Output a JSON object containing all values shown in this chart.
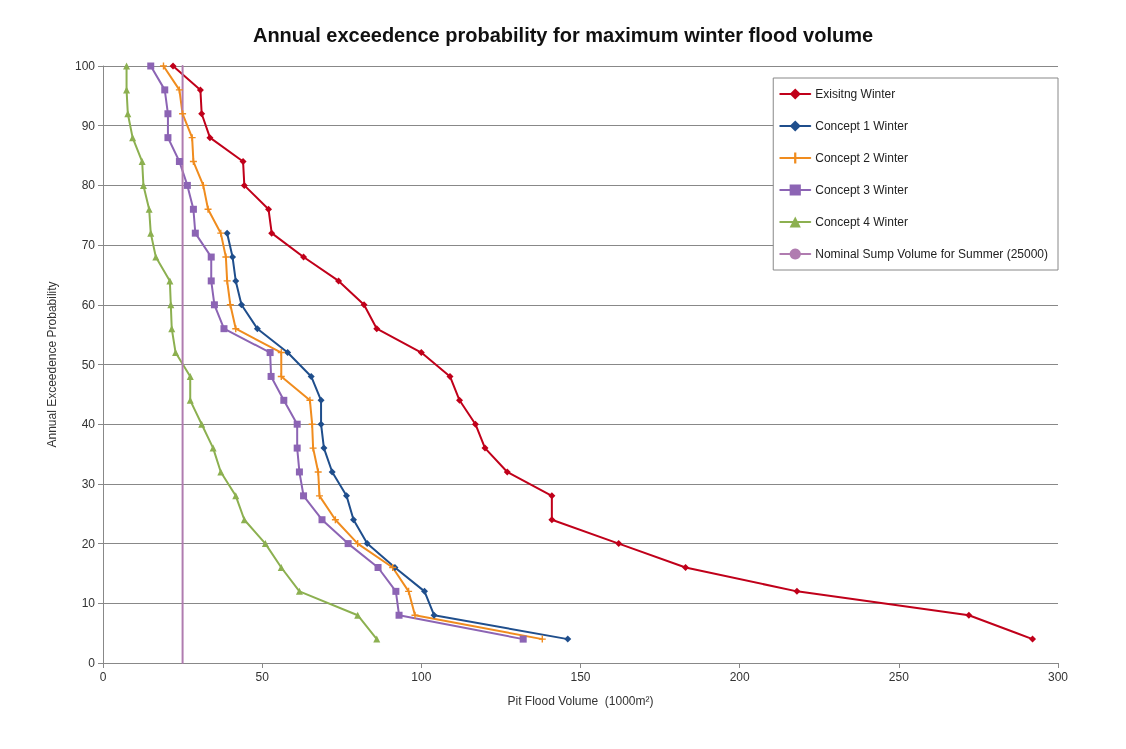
{
  "chart_data": {
    "type": "line",
    "title": "Annual exceedence probability for maximum winter flood volume",
    "xlabel": "Pit Flood Volume  (1000m²)",
    "ylabel": "Annual Exceedence Probability",
    "xlim": [
      0,
      300
    ],
    "xticks": [
      0,
      50,
      100,
      150,
      200,
      250,
      300
    ],
    "ylim": [
      0,
      100
    ],
    "yticks": [
      0,
      10,
      20,
      30,
      40,
      50,
      60,
      70,
      80,
      90,
      100
    ],
    "grid": "y",
    "legend": "top right",
    "series": [
      {
        "name": "Exisitng Winter",
        "color": "#c0001a",
        "marker": "diamond",
        "x": [
          22,
          30.6,
          31,
          33.6,
          44,
          44.4,
          52,
          53,
          63,
          74,
          82,
          86,
          100,
          109,
          112,
          117,
          120,
          127,
          141,
          141,
          162,
          183,
          218,
          272,
          292
        ],
        "values": [
          100,
          96,
          92,
          88,
          84,
          80,
          76,
          72,
          68,
          64,
          60,
          56,
          52,
          48,
          44,
          40,
          36,
          32,
          28,
          24,
          20,
          16,
          12,
          8,
          4
        ]
      },
      {
        "name": "Concept 1 Winter",
        "color": "#1f4e8c",
        "marker": "diamond",
        "x": [
          null,
          null,
          null,
          null,
          null,
          null,
          null,
          39,
          40.7,
          41.7,
          43.5,
          48.5,
          58,
          65.4,
          68.5,
          68.5,
          69.4,
          72,
          76.5,
          78.7,
          83,
          91.7,
          101,
          104,
          146
        ],
        "values": [
          null,
          null,
          null,
          null,
          null,
          null,
          null,
          72,
          68,
          64,
          60,
          56,
          52,
          48,
          44,
          40,
          36,
          32,
          28,
          24,
          20,
          16,
          12,
          8,
          4
        ]
      },
      {
        "name": "Concept 2 Winter",
        "color": "#f08c1e",
        "marker": "cross",
        "x": [
          19,
          24,
          25,
          28,
          28.4,
          31.5,
          33,
          37,
          38.6,
          39,
          40,
          41.7,
          56,
          56,
          65,
          65.7,
          66,
          67.6,
          68,
          73,
          80,
          91,
          96,
          98,
          138
        ],
        "values": [
          100,
          96,
          92,
          88,
          84,
          80,
          76,
          72,
          68,
          64,
          60,
          56,
          52,
          48,
          44,
          40,
          36,
          32,
          28,
          24,
          20,
          16,
          12,
          8,
          4
        ]
      },
      {
        "name": "Concept 3 Winter",
        "color": "#8c64b4",
        "marker": "square",
        "x": [
          15,
          19.4,
          20.4,
          20.4,
          24,
          26.5,
          28.4,
          29,
          34,
          34,
          35,
          38,
          52.5,
          52.8,
          56.8,
          61,
          61,
          61.7,
          63,
          68.8,
          77,
          86.4,
          92,
          93,
          132
        ],
        "values": [
          100,
          96,
          92,
          88,
          84,
          80,
          76,
          72,
          68,
          64,
          60,
          56,
          52,
          48,
          44,
          40,
          36,
          32,
          28,
          24,
          20,
          16,
          12,
          8,
          4
        ]
      },
      {
        "name": "Concept 4 Winter",
        "color": "#8cb050",
        "marker": "triangle",
        "x": [
          7.4,
          7.4,
          7.8,
          9.3,
          12.3,
          12.7,
          14.5,
          15,
          16.6,
          21,
          21.3,
          21.6,
          22.8,
          27.4,
          27.4,
          31,
          34.6,
          37,
          41.7,
          44.4,
          51,
          56,
          61.7,
          80,
          86
        ],
        "values": [
          100,
          96,
          92,
          88,
          84,
          80,
          76,
          72,
          68,
          64,
          60,
          56,
          52,
          48,
          44,
          40,
          36,
          32,
          28,
          24,
          20,
          16,
          12,
          8,
          4
        ]
      },
      {
        "name": "Nominal Sump Volume for Summer (25000)",
        "color": "#b07cb0",
        "marker": "none",
        "x": [
          25,
          25
        ],
        "values": [
          0,
          100
        ]
      }
    ]
  }
}
